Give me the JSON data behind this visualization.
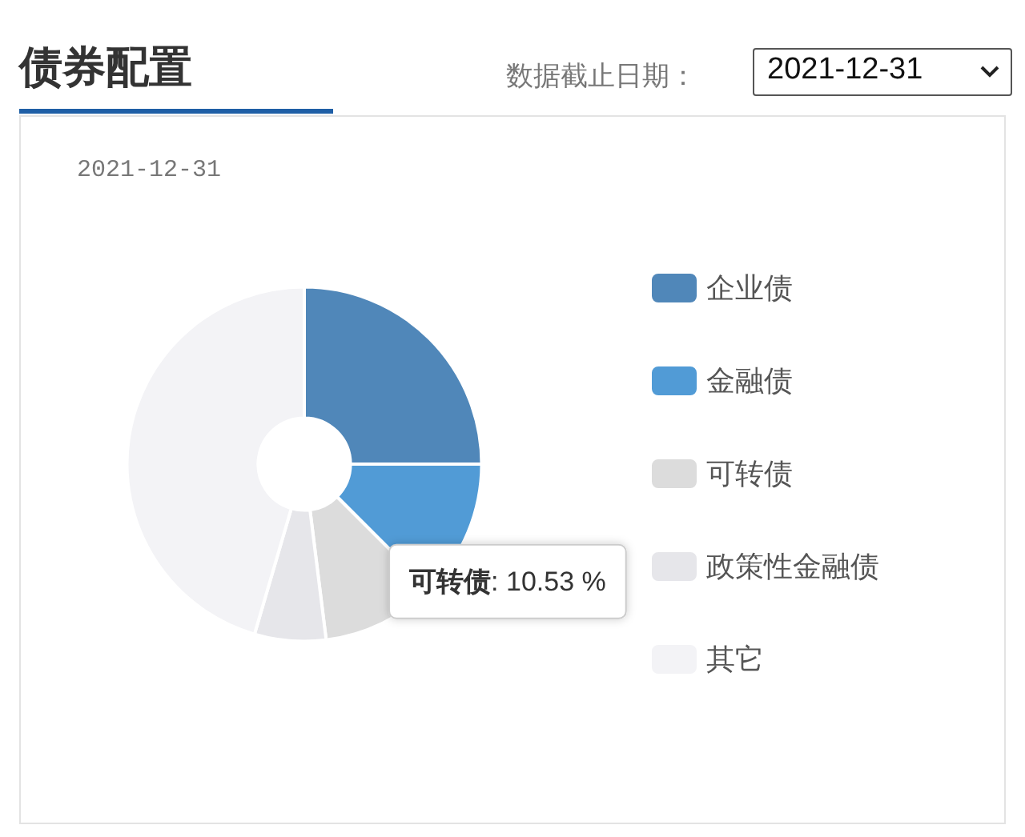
{
  "chart_data": {
    "type": "donut",
    "title": "债券配置",
    "subtitle": "2021-12-31",
    "annotations": [
      "数据截止日期：",
      "2021-12-31"
    ],
    "categories": [
      "企业债",
      "金融债",
      "可转债",
      "政策性金融债",
      "其它"
    ],
    "values": [
      25,
      12.5,
      10.53,
      6.5,
      45.47
    ],
    "colors": [
      "#5087b9",
      "#519bd6",
      "#dcdcdc",
      "#e6e6ea",
      "#f3f3f6"
    ],
    "value_labels": [
      null,
      null,
      "可转债: 10.53 %",
      null,
      null
    ],
    "legend": "right"
  }
}
